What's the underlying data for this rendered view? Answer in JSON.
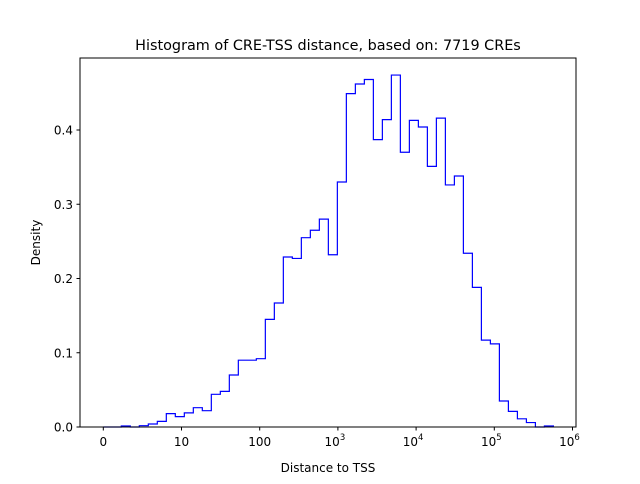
{
  "chart_data": {
    "type": "histogram",
    "histtype": "step",
    "title": "Histogram of CRE-TSS distance, based on: 7719 CREs",
    "xlabel": "Distance to TSS",
    "ylabel": "Density",
    "xscale": "symlog",
    "xlim": [
      -0.3,
      1000000
    ],
    "ylim": [
      0,
      0.5
    ],
    "x_ticks": [
      {
        "value": 0,
        "label": "0"
      },
      {
        "value": 10,
        "label": "10"
      },
      {
        "value": 100,
        "label": "100"
      },
      {
        "value": 1000,
        "label": "10",
        "exp": "3"
      },
      {
        "value": 10000,
        "label": "10",
        "exp": "4"
      },
      {
        "value": 100000,
        "label": "10",
        "exp": "5"
      },
      {
        "value": 1000000,
        "label": "10",
        "exp": "6"
      }
    ],
    "y_ticks": [
      {
        "value": 0.0,
        "label": "0.0"
      },
      {
        "value": 0.1,
        "label": "0.1"
      },
      {
        "value": 0.2,
        "label": "0.2"
      },
      {
        "value": 0.3,
        "label": "0.3"
      },
      {
        "value": 0.4,
        "label": "0.4"
      }
    ],
    "bin_range": [
      0,
      570000
    ],
    "bins": 50,
    "density": [
      0,
      0,
      0.0013,
      0,
      0.0018,
      0.004,
      0.0076,
      0.018,
      0.014,
      0.019,
      0.026,
      0.022,
      0.044,
      0.048,
      0.07,
      0.09,
      0.09,
      0.092,
      0.145,
      0.167,
      0.229,
      0.227,
      0.255,
      0.265,
      0.28,
      0.232,
      0.33,
      0.449,
      0.462,
      0.468,
      0.387,
      0.414,
      0.474,
      0.37,
      0.413,
      0.404,
      0.351,
      0.416,
      0.326,
      0.338,
      0.234,
      0.188,
      0.117,
      0.112,
      0.035,
      0.021,
      0.011,
      0.006,
      0,
      0.0013
    ],
    "grid": false,
    "colors": {
      "line": "#0000ff"
    }
  }
}
